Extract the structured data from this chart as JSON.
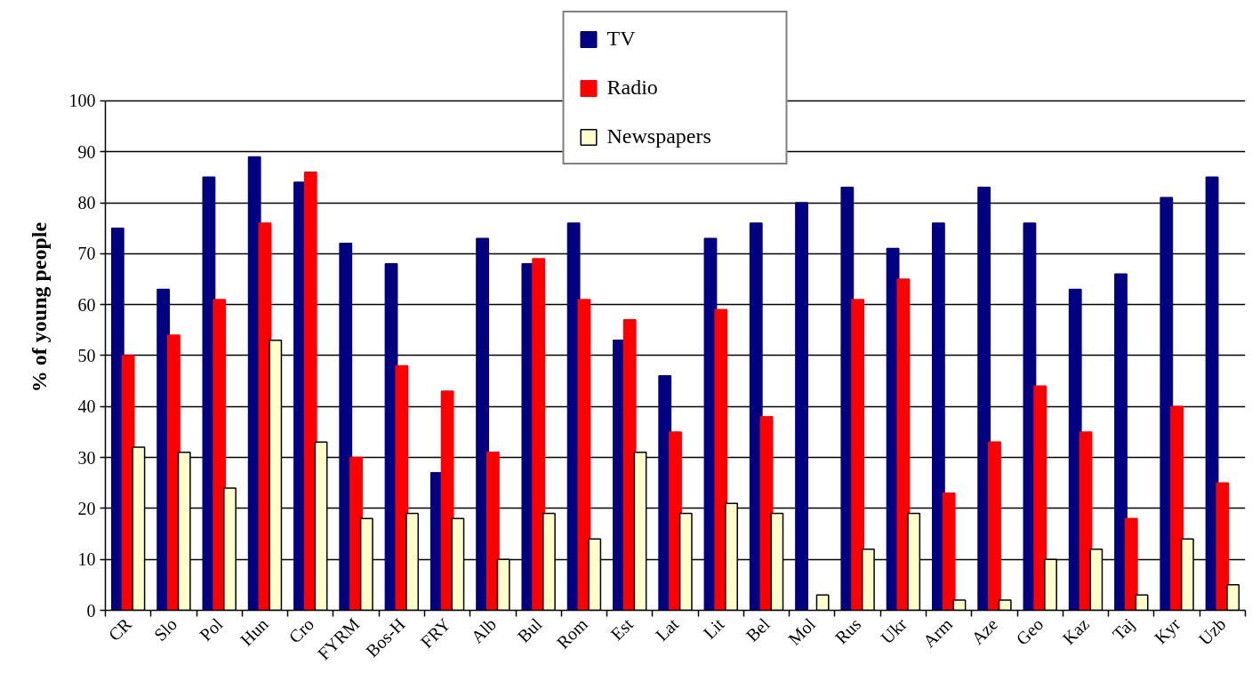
{
  "chart_data": {
    "type": "bar",
    "ylabel": "% of young people",
    "categories": [
      "CR",
      "Slo",
      "Pol",
      "Hun",
      "Cro",
      "FYRM",
      "Bos-H",
      "FRY",
      "Alb",
      "Bul",
      "Rom",
      "Est",
      "Lat",
      "Lit",
      "Bel",
      "Mol",
      "Rus",
      "Ukr",
      "Arm",
      "Aze",
      "Geo",
      "Kaz",
      "Taj",
      "Kyr",
      "Uzb"
    ],
    "series": [
      {
        "name": "TV",
        "color": "#000080",
        "values": [
          75,
          63,
          85,
          89,
          84,
          72,
          68,
          27,
          73,
          68,
          76,
          53,
          46,
          73,
          76,
          80,
          83,
          71,
          76,
          83,
          76,
          63,
          66,
          81,
          85
        ]
      },
      {
        "name": "Radio",
        "color": "#ff0000",
        "values": [
          50,
          54,
          61,
          76,
          86,
          30,
          48,
          43,
          31,
          69,
          61,
          57,
          35,
          59,
          38,
          null,
          61,
          65,
          23,
          33,
          44,
          35,
          18,
          40,
          25
        ]
      },
      {
        "name": "Newspapers",
        "color": "#ffffcc",
        "values": [
          32,
          31,
          24,
          53,
          33,
          18,
          19,
          18,
          10,
          19,
          14,
          31,
          19,
          21,
          19,
          3,
          12,
          19,
          2,
          2,
          10,
          12,
          3,
          14,
          5
        ]
      }
    ],
    "ylim": [
      0,
      100
    ],
    "yticks": [
      0,
      10,
      20,
      30,
      40,
      50,
      60,
      70,
      80,
      90,
      100
    ],
    "grid": "y",
    "legend": "top"
  }
}
